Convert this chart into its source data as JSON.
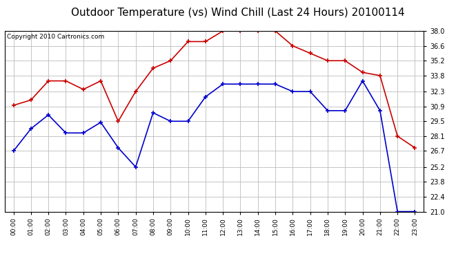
{
  "title": "Outdoor Temperature (vs) Wind Chill (Last 24 Hours) 20100114",
  "copyright": "Copyright 2010 Cartronics.com",
  "hours": [
    "00:00",
    "01:00",
    "02:00",
    "03:00",
    "04:00",
    "05:00",
    "06:00",
    "07:00",
    "08:00",
    "09:00",
    "10:00",
    "11:00",
    "12:00",
    "13:00",
    "14:00",
    "15:00",
    "16:00",
    "17:00",
    "18:00",
    "19:00",
    "20:00",
    "21:00",
    "22:00",
    "23:00"
  ],
  "temp": [
    31.0,
    31.5,
    33.3,
    33.3,
    32.5,
    33.3,
    29.5,
    32.3,
    34.5,
    35.2,
    37.0,
    37.0,
    38.0,
    38.0,
    38.0,
    38.0,
    36.6,
    35.9,
    35.2,
    35.2,
    34.1,
    33.8,
    28.1,
    27.0
  ],
  "windchill": [
    26.7,
    28.8,
    30.1,
    28.4,
    28.4,
    29.4,
    27.0,
    25.2,
    30.3,
    29.5,
    29.5,
    31.8,
    33.0,
    33.0,
    33.0,
    33.0,
    32.3,
    32.3,
    30.5,
    30.5,
    33.3,
    30.5,
    21.0,
    21.0
  ],
  "temp_color": "#cc0000",
  "windchill_color": "#0000cc",
  "bg_color": "#ffffff",
  "plot_bg_color": "#ffffff",
  "grid_color": "#bbbbbb",
  "ylim_min": 21.0,
  "ylim_max": 38.0,
  "yticks": [
    21.0,
    22.4,
    23.8,
    25.2,
    26.7,
    28.1,
    29.5,
    30.9,
    32.3,
    33.8,
    35.2,
    36.6,
    38.0
  ],
  "title_fontsize": 11,
  "copyright_fontsize": 6.5
}
